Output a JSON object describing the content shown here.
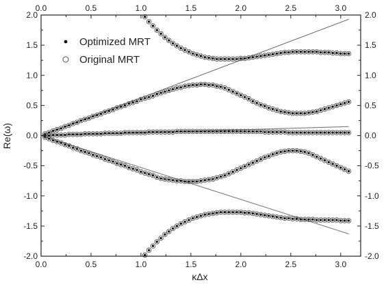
{
  "chart_data": {
    "type": "scatter",
    "title": "",
    "xlabel": "κΔx",
    "ylabel": "Re(ω)",
    "xlim": [
      0.0,
      3.2
    ],
    "ylim": [
      -2.0,
      2.0
    ],
    "xticks": [
      "0.0",
      "0.5",
      "1.0",
      "1.5",
      "2.0",
      "2.5",
      "3.0"
    ],
    "yticks": [
      "-2.0",
      "-1.5",
      "-1.0",
      "-0.5",
      "0.0",
      "0.5",
      "1.0",
      "1.5",
      "2.0"
    ],
    "grid": false,
    "legend_position": "top-left",
    "mirrored_axes": true,
    "x": [
      0.04,
      0.08,
      0.12,
      0.16,
      0.2,
      0.24,
      0.28,
      0.32,
      0.36,
      0.4,
      0.44,
      0.48,
      0.52,
      0.56,
      0.6,
      0.64,
      0.68,
      0.72,
      0.76,
      0.8,
      0.84,
      0.88,
      0.92,
      0.96,
      1.0,
      1.04,
      1.08,
      1.12,
      1.16,
      1.2,
      1.24,
      1.28,
      1.32,
      1.36,
      1.4,
      1.44,
      1.48,
      1.52,
      1.56,
      1.6,
      1.64,
      1.68,
      1.72,
      1.76,
      1.8,
      1.84,
      1.88,
      1.92,
      1.96,
      2.0,
      2.04,
      2.08,
      2.12,
      2.16,
      2.2,
      2.24,
      2.28,
      2.32,
      2.36,
      2.4,
      2.44,
      2.48,
      2.52,
      2.56,
      2.6,
      2.64,
      2.68,
      2.72,
      2.76,
      2.8,
      2.84,
      2.88,
      2.92,
      2.96,
      3.0,
      3.04,
      3.08
    ],
    "series": [
      {
        "name": "Optimized MRT",
        "marker": "filled-dot",
        "branches": [
          [
            0.03,
            0.05,
            0.08,
            0.1,
            0.12,
            0.15,
            0.17,
            0.2,
            0.22,
            0.25,
            0.27,
            0.29,
            0.32,
            0.34,
            0.36,
            0.39,
            0.41,
            0.43,
            0.46,
            0.48,
            0.5,
            0.53,
            0.55,
            0.57,
            0.6,
            0.62,
            0.64,
            0.66,
            0.69,
            0.71,
            0.73,
            0.75,
            0.77,
            0.79,
            0.8,
            0.82,
            0.83,
            0.84,
            0.84,
            0.85,
            0.85,
            0.84,
            0.84,
            0.82,
            0.81,
            0.79,
            0.76,
            0.73,
            0.7,
            0.67,
            0.64,
            0.61,
            0.57,
            0.54,
            0.51,
            0.49,
            0.46,
            0.44,
            0.42,
            0.4,
            0.39,
            0.38,
            0.37,
            0.37,
            0.37,
            0.37,
            0.38,
            0.39,
            0.4,
            0.42,
            0.44,
            0.46,
            0.48,
            0.5,
            0.52,
            0.54,
            0.56
          ],
          [
            -0.03,
            -0.05,
            -0.08,
            -0.1,
            -0.12,
            -0.15,
            -0.17,
            -0.2,
            -0.22,
            -0.25,
            -0.27,
            -0.29,
            -0.32,
            -0.34,
            -0.36,
            -0.39,
            -0.41,
            -0.43,
            -0.46,
            -0.48,
            -0.5,
            -0.53,
            -0.55,
            -0.57,
            -0.6,
            -0.62,
            -0.64,
            -0.66,
            -0.69,
            -0.71,
            -0.72,
            -0.73,
            -0.74,
            -0.75,
            -0.75,
            -0.76,
            -0.76,
            -0.76,
            -0.76,
            -0.75,
            -0.74,
            -0.73,
            -0.72,
            -0.7,
            -0.68,
            -0.66,
            -0.63,
            -0.6,
            -0.57,
            -0.54,
            -0.51,
            -0.48,
            -0.45,
            -0.42,
            -0.39,
            -0.36,
            -0.34,
            -0.31,
            -0.29,
            -0.27,
            -0.26,
            -0.25,
            -0.25,
            -0.25,
            -0.26,
            -0.27,
            -0.29,
            -0.32,
            -0.35,
            -0.38,
            -0.41,
            -0.44,
            -0.47,
            -0.5,
            -0.53,
            -0.56,
            -0.59
          ],
          [
            0.0,
            0.0,
            0.01,
            0.01,
            0.01,
            0.01,
            0.02,
            0.02,
            0.02,
            0.02,
            0.03,
            0.03,
            0.03,
            0.03,
            0.03,
            0.04,
            0.04,
            0.04,
            0.04,
            0.04,
            0.05,
            0.05,
            0.05,
            0.05,
            0.05,
            0.05,
            0.06,
            0.06,
            0.06,
            0.06,
            0.06,
            0.06,
            0.06,
            0.07,
            0.07,
            0.07,
            0.07,
            0.07,
            0.07,
            0.07,
            0.07,
            0.07,
            0.07,
            0.07,
            0.07,
            0.07,
            0.07,
            0.07,
            0.07,
            0.07,
            0.07,
            0.07,
            0.07,
            0.07,
            0.07,
            0.06,
            0.06,
            0.06,
            0.06,
            0.06,
            0.06,
            0.05,
            0.05,
            0.05,
            0.05,
            0.05,
            0.05,
            0.05,
            0.05,
            0.05,
            0.05,
            0.05,
            0.05,
            0.05,
            0.05,
            0.05,
            0.05
          ],
          [
            null,
            null,
            null,
            null,
            null,
            null,
            null,
            null,
            null,
            null,
            null,
            null,
            null,
            null,
            null,
            null,
            null,
            null,
            null,
            null,
            null,
            null,
            null,
            null,
            null,
            1.97,
            1.89,
            1.82,
            1.75,
            1.69,
            1.63,
            1.58,
            1.53,
            1.49,
            1.45,
            1.42,
            1.39,
            1.36,
            1.34,
            1.32,
            1.3,
            1.29,
            1.28,
            1.27,
            1.27,
            1.27,
            1.27,
            1.27,
            1.27,
            1.28,
            1.28,
            1.29,
            1.3,
            1.31,
            1.32,
            1.33,
            1.34,
            1.35,
            1.36,
            1.37,
            1.38,
            1.38,
            1.39,
            1.39,
            1.39,
            1.39,
            1.39,
            1.39,
            1.39,
            1.38,
            1.38,
            1.38,
            1.37,
            1.37,
            1.36,
            1.36,
            1.36
          ],
          [
            null,
            null,
            null,
            null,
            null,
            null,
            null,
            null,
            null,
            null,
            null,
            null,
            null,
            null,
            null,
            null,
            null,
            null,
            null,
            null,
            null,
            null,
            null,
            null,
            null,
            -1.98,
            -1.9,
            -1.83,
            -1.76,
            -1.7,
            -1.64,
            -1.59,
            -1.54,
            -1.5,
            -1.46,
            -1.43,
            -1.4,
            -1.37,
            -1.35,
            -1.33,
            -1.31,
            -1.3,
            -1.29,
            -1.28,
            -1.27,
            -1.27,
            -1.27,
            -1.27,
            -1.27,
            -1.27,
            -1.28,
            -1.28,
            -1.29,
            -1.3,
            -1.31,
            -1.32,
            -1.33,
            -1.34,
            -1.35,
            -1.36,
            -1.37,
            -1.37,
            -1.38,
            -1.38,
            -1.39,
            -1.39,
            -1.39,
            -1.39,
            -1.4,
            -1.4,
            -1.4,
            -1.4,
            -1.4,
            -1.4,
            -1.41,
            -1.41,
            -1.41
          ]
        ]
      },
      {
        "name": "Original MRT",
        "marker": "open-circle",
        "same_points_as": "Optimized MRT"
      }
    ],
    "reference_lines": [
      {
        "x": [
          0.0,
          3.08
        ],
        "y": [
          0.0,
          1.93
        ]
      },
      {
        "x": [
          0.0,
          3.08
        ],
        "y": [
          0.0,
          -1.63
        ]
      },
      {
        "x": [
          0.0,
          3.08
        ],
        "y": [
          0.0,
          0.15
        ]
      }
    ]
  }
}
